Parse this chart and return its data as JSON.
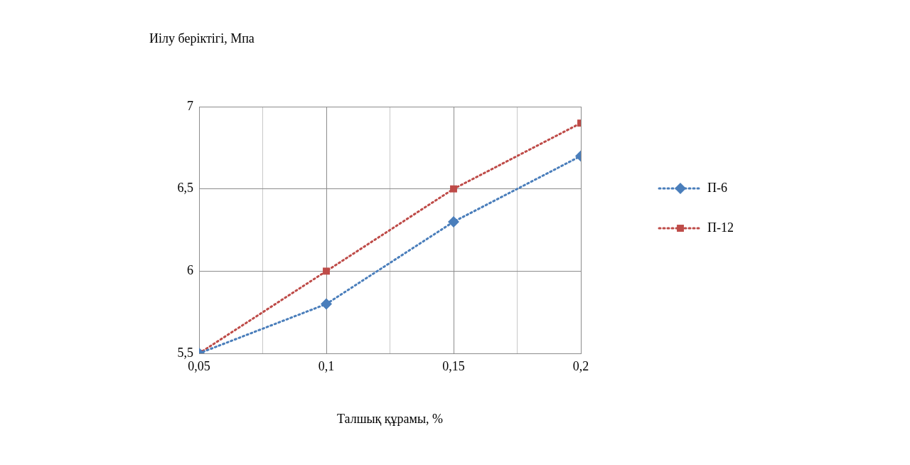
{
  "chart_data": {
    "type": "line",
    "xlabel": "Талшық құрамы, %",
    "ylabel": "Иілу беріктігі, Мпа",
    "x": [
      0.05,
      0.1,
      0.15,
      0.2
    ],
    "series": [
      {
        "name": "П-6",
        "color": "#4a7ebb",
        "values": [
          5.5,
          5.8,
          6.3,
          6.7
        ],
        "marker": "diamond"
      },
      {
        "name": "П-12",
        "color": "#be4b48",
        "values": [
          5.5,
          6.0,
          6.5,
          6.9
        ],
        "marker": "square"
      }
    ],
    "xlim": [
      0.05,
      0.2
    ],
    "xticks": [
      {
        "value": 0.05,
        "label": "0,05"
      },
      {
        "value": 0.075,
        "label": null
      },
      {
        "value": 0.1,
        "label": "0,1"
      },
      {
        "value": 0.125,
        "label": null
      },
      {
        "value": 0.15,
        "label": "0,15"
      },
      {
        "value": 0.175,
        "label": null
      },
      {
        "value": 0.2,
        "label": "0,2"
      }
    ],
    "ylim": [
      5.5,
      7
    ],
    "yticks": [
      {
        "value": 5.5,
        "label": "5,5"
      },
      {
        "value": 6,
        "label": "6"
      },
      {
        "value": 6.5,
        "label": "6,5"
      },
      {
        "value": 7,
        "label": "7"
      }
    ],
    "grid": true,
    "legend": "right",
    "line_style": "dotted"
  }
}
